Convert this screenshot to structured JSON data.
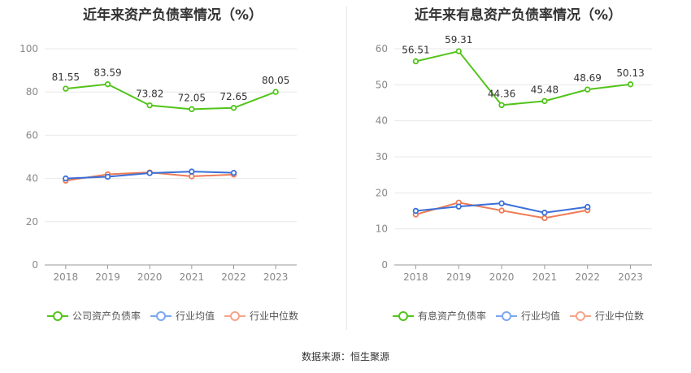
{
  "charts": [
    {
      "title": "近年来资产负债率情况（%）",
      "legend": [
        {
          "label": "公司资产负债率",
          "color": "#52c41a"
        },
        {
          "label": "行业均值",
          "color": "#7aa7f0"
        },
        {
          "label": "行业中位数",
          "color": "#f5a58a"
        }
      ]
    },
    {
      "title": "近年来有息资产负债率情况（%）",
      "legend": [
        {
          "label": "有息资产负债率",
          "color": "#52c41a"
        },
        {
          "label": "行业均值",
          "color": "#7aa7f0"
        },
        {
          "label": "行业中位数",
          "color": "#f5a58a"
        }
      ]
    }
  ],
  "source": "数据来源：恒生聚源",
  "chart_data": [
    {
      "type": "line",
      "title": "近年来资产负债率情况（%）",
      "categories": [
        "2018",
        "2019",
        "2020",
        "2021",
        "2022",
        "2023"
      ],
      "ylim": [
        0,
        100
      ],
      "yticks": [
        0,
        20,
        40,
        60,
        80,
        100
      ],
      "grid": true,
      "legend_position": "bottom",
      "series": [
        {
          "name": "公司资产负债率",
          "color": "#52c41a",
          "values": [
            81.55,
            83.59,
            73.82,
            72.05,
            72.65,
            80.05
          ],
          "labels": true
        },
        {
          "name": "行业均值",
          "color": "#3a6fd8",
          "values": [
            40.0,
            40.8,
            42.5,
            43.2,
            42.6,
            null
          ],
          "labels": false
        },
        {
          "name": "行业中位数",
          "color": "#ee7b55",
          "values": [
            39.0,
            41.9,
            42.8,
            41.0,
            41.8,
            null
          ],
          "labels": false
        }
      ]
    },
    {
      "type": "line",
      "title": "近年来有息资产负债率情况（%）",
      "categories": [
        "2018",
        "2019",
        "2020",
        "2021",
        "2022",
        "2023"
      ],
      "ylim": [
        0,
        60
      ],
      "yticks": [
        0,
        10,
        20,
        30,
        40,
        50,
        60
      ],
      "grid": true,
      "legend_position": "bottom",
      "series": [
        {
          "name": "有息资产负债率",
          "color": "#52c41a",
          "values": [
            56.51,
            59.31,
            44.36,
            45.48,
            48.69,
            50.13
          ],
          "labels": true
        },
        {
          "name": "行业均值",
          "color": "#3a6fd8",
          "values": [
            15.0,
            16.2,
            17.1,
            14.5,
            16.1,
            null
          ],
          "labels": false
        },
        {
          "name": "行业中位数",
          "color": "#ee7b55",
          "values": [
            14.0,
            17.3,
            15.1,
            13.0,
            15.2,
            null
          ],
          "labels": false
        }
      ]
    }
  ]
}
